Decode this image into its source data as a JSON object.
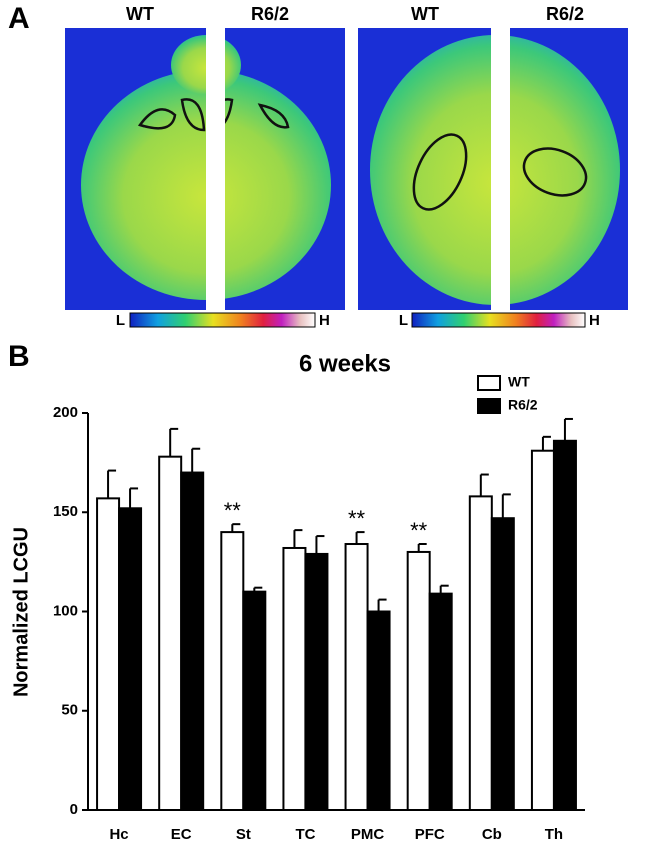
{
  "panel_a": {
    "label": "A",
    "images": [
      {
        "left": "WT",
        "right": "R6/2"
      },
      {
        "left": "WT",
        "right": "R6/2"
      }
    ],
    "scales": [
      {
        "low": "L",
        "high": "H"
      },
      {
        "low": "L",
        "high": "H"
      }
    ]
  },
  "chart_data": {
    "type": "bar",
    "panel_label": "B",
    "title": "6 weeks",
    "y_label": "Normalized LCGU",
    "categories": [
      "Hc",
      "EC",
      "St",
      "TC",
      "PMC",
      "PFC",
      "Cb",
      "Th"
    ],
    "series": [
      {
        "name": "WT",
        "color": "#ffffff",
        "values": [
          157,
          178,
          140,
          132,
          134,
          130,
          158,
          181
        ],
        "errors": [
          14,
          14,
          4,
          9,
          6,
          4,
          11,
          7
        ]
      },
      {
        "name": "R6/2",
        "color": "#000000",
        "values": [
          152,
          170,
          110,
          129,
          100,
          109,
          147,
          186
        ],
        "errors": [
          10,
          12,
          2,
          9,
          6,
          4,
          12,
          11
        ]
      }
    ],
    "significance": [
      null,
      null,
      "**",
      null,
      "**",
      "**",
      null,
      null
    ],
    "ylim": [
      0,
      200
    ],
    "yticks": [
      0,
      50,
      100,
      150,
      200
    ]
  }
}
